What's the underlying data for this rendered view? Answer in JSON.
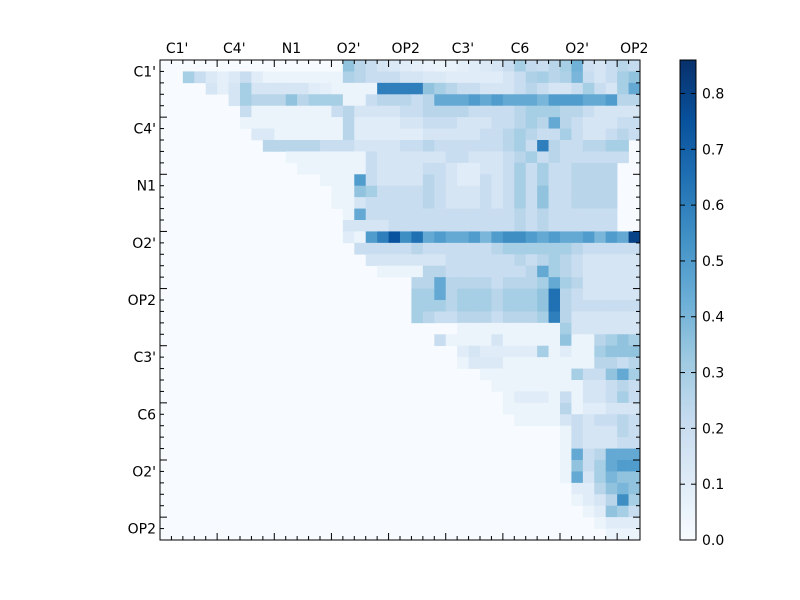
{
  "chart_data": {
    "type": "heatmap",
    "title": "",
    "xlabel": "",
    "ylabel": "",
    "grid": false,
    "x_tick_labels": [
      "C1'",
      "C4'",
      "N1",
      "O2'",
      "OP2",
      "C3'",
      "C6",
      "O2'",
      "OP2"
    ],
    "y_tick_labels": [
      "C1'",
      "C4'",
      "N1",
      "O2'",
      "OP2",
      "C3'",
      "C6",
      "O2'",
      "OP2"
    ],
    "x_axis_position": "top",
    "colormap": "Blues",
    "colorbar": {
      "min": 0.0,
      "max": 0.86,
      "ticks": [
        "0.0",
        "0.1",
        "0.2",
        "0.3",
        "0.4",
        "0.5",
        "0.6",
        "0.7",
        "0.8"
      ],
      "position": "right"
    },
    "matrix_size": 42,
    "default_value": 0.0,
    "upper_triangle_only": true,
    "row_values": [
      {
        "row": 0,
        "start": 0,
        "values": [
          0.0,
          0.0,
          0.0,
          0.0,
          0.0,
          0.0,
          0.0,
          0.0,
          0.0,
          0.0,
          0.0,
          0.0,
          0.0,
          0.0,
          0.0,
          0.0,
          0.35,
          0.25,
          0.2,
          0.15,
          0.12,
          0.1,
          0.08,
          0.06,
          0.05,
          0.06,
          0.08,
          0.1,
          0.12,
          0.15,
          0.2,
          0.3,
          0.22,
          0.2,
          0.25,
          0.3,
          0.42,
          0.18,
          0.15,
          0.2,
          0.25,
          0.22
        ]
      },
      {
        "row": 1,
        "start": 2,
        "values": [
          0.3,
          0.2,
          0.12,
          0.08,
          0.12,
          0.2,
          0.1,
          0.05,
          0.05,
          0.05,
          0.05,
          0.05,
          0.05,
          0.05,
          0.28,
          0.25,
          0.2,
          0.2,
          0.2,
          0.15,
          0.15,
          0.12,
          0.12,
          0.1,
          0.1,
          0.1,
          0.1,
          0.1,
          0.15,
          0.2,
          0.28,
          0.3,
          0.25,
          0.28,
          0.4,
          0.2,
          0.15,
          0.2,
          0.3,
          0.35
        ]
      },
      {
        "row": 2,
        "start": 4,
        "values": [
          0.15,
          0.08,
          0.15,
          0.3,
          0.15,
          0.15,
          0.15,
          0.15,
          0.15,
          0.1,
          0.08,
          0.05,
          0.05,
          0.05,
          0.05,
          0.6,
          0.6,
          0.6,
          0.6,
          0.35,
          0.3,
          0.25,
          0.2,
          0.2,
          0.15,
          0.15,
          0.15,
          0.2,
          0.25,
          0.2,
          0.15,
          0.15,
          0.2,
          0.3,
          0.2,
          0.15,
          0.3,
          0.45,
          0.55
        ]
      },
      {
        "row": 3,
        "start": 6,
        "values": [
          0.15,
          0.3,
          0.25,
          0.25,
          0.25,
          0.35,
          0.25,
          0.3,
          0.3,
          0.3,
          0.05,
          0.05,
          0.2,
          0.25,
          0.25,
          0.25,
          0.2,
          0.25,
          0.45,
          0.45,
          0.45,
          0.5,
          0.45,
          0.5,
          0.45,
          0.45,
          0.45,
          0.4,
          0.5,
          0.5,
          0.5,
          0.45,
          0.45,
          0.5,
          0.25,
          0.25,
          0.3,
          0.35
        ]
      },
      {
        "row": 4,
        "start": 7,
        "values": [
          0.2,
          0.05,
          0.05,
          0.05,
          0.05,
          0.05,
          0.05,
          0.05,
          0.2,
          0.25,
          0.15,
          0.15,
          0.15,
          0.15,
          0.2,
          0.2,
          0.25,
          0.25,
          0.25,
          0.25,
          0.2,
          0.2,
          0.2,
          0.2,
          0.25,
          0.3,
          0.3,
          0.3,
          0.25,
          0.25,
          0.2,
          0.15,
          0.15,
          0.15,
          0.15,
          0.15,
          0.2
        ]
      },
      {
        "row": 5,
        "start": 7,
        "values": [
          0.05,
          0.05,
          0.05,
          0.05,
          0.05,
          0.05,
          0.05,
          0.05,
          0.05,
          0.25,
          0.1,
          0.1,
          0.1,
          0.1,
          0.15,
          0.15,
          0.2,
          0.2,
          0.2,
          0.15,
          0.15,
          0.15,
          0.2,
          0.2,
          0.25,
          0.3,
          0.25,
          0.45,
          0.25,
          0.2,
          0.15,
          0.15,
          0.15,
          0.2,
          0.2
        ]
      },
      {
        "row": 6,
        "start": 8,
        "values": [
          0.12,
          0.12,
          0.05,
          0.05,
          0.05,
          0.05,
          0.05,
          0.05,
          0.25,
          0.1,
          0.1,
          0.1,
          0.1,
          0.1,
          0.1,
          0.15,
          0.15,
          0.15,
          0.15,
          0.15,
          0.2,
          0.2,
          0.25,
          0.3,
          0.25,
          0.2,
          0.2,
          0.3,
          0.2,
          0.15,
          0.15,
          0.2,
          0.25,
          0.2
        ]
      },
      {
        "row": 7,
        "start": 9,
        "values": [
          0.25,
          0.25,
          0.25,
          0.25,
          0.25,
          0.2,
          0.2,
          0.2,
          0.15,
          0.15,
          0.15,
          0.15,
          0.2,
          0.2,
          0.25,
          0.2,
          0.2,
          0.2,
          0.2,
          0.2,
          0.2,
          0.25,
          0.3,
          0.2,
          0.6,
          0.25,
          0.2,
          0.2,
          0.25,
          0.25,
          0.3,
          0.3
        ]
      },
      {
        "row": 8,
        "start": 11,
        "values": [
          0.05,
          0.05,
          0.05,
          0.05,
          0.05,
          0.05,
          0.05,
          0.2,
          0.15,
          0.15,
          0.15,
          0.15,
          0.15,
          0.15,
          0.2,
          0.2,
          0.15,
          0.15,
          0.15,
          0.2,
          0.25,
          0.3,
          0.2,
          0.25,
          0.2,
          0.2,
          0.2,
          0.2,
          0.2,
          0.2
        ]
      },
      {
        "row": 9,
        "start": 12,
        "values": [
          0.05,
          0.05,
          0.05,
          0.05,
          0.05,
          0.05,
          0.2,
          0.15,
          0.15,
          0.15,
          0.15,
          0.2,
          0.2,
          0.15,
          0.1,
          0.1,
          0.15,
          0.15,
          0.2,
          0.3,
          0.2,
          0.3,
          0.2,
          0.2,
          0.25,
          0.25,
          0.25,
          0.25
        ]
      },
      {
        "row": 10,
        "start": 14,
        "values": [
          0.05,
          0.05,
          0.05,
          0.5,
          0.2,
          0.15,
          0.15,
          0.15,
          0.15,
          0.25,
          0.2,
          0.15,
          0.1,
          0.1,
          0.2,
          0.15,
          0.2,
          0.3,
          0.2,
          0.3,
          0.2,
          0.2,
          0.25,
          0.25,
          0.25,
          0.25
        ]
      },
      {
        "row": 11,
        "start": 15,
        "values": [
          0.05,
          0.05,
          0.35,
          0.3,
          0.2,
          0.2,
          0.2,
          0.2,
          0.25,
          0.2,
          0.15,
          0.15,
          0.15,
          0.2,
          0.15,
          0.2,
          0.3,
          0.2,
          0.35,
          0.2,
          0.2,
          0.25,
          0.25,
          0.25,
          0.25
        ]
      },
      {
        "row": 12,
        "start": 15,
        "values": [
          0.05,
          0.05,
          0.15,
          0.2,
          0.2,
          0.2,
          0.2,
          0.2,
          0.25,
          0.2,
          0.15,
          0.15,
          0.15,
          0.2,
          0.15,
          0.2,
          0.3,
          0.2,
          0.35,
          0.2,
          0.2,
          0.25,
          0.25,
          0.25,
          0.25
        ]
      },
      {
        "row": 13,
        "start": 16,
        "values": [
          0.05,
          0.45,
          0.2,
          0.2,
          0.2,
          0.2,
          0.2,
          0.2,
          0.2,
          0.2,
          0.2,
          0.2,
          0.2,
          0.2,
          0.2,
          0.25,
          0.2,
          0.25,
          0.2,
          0.2,
          0.2,
          0.2,
          0.2,
          0.2
        ]
      },
      {
        "row": 14,
        "start": 16,
        "values": [
          0.15,
          0.15,
          0.15,
          0.15,
          0.2,
          0.2,
          0.2,
          0.2,
          0.2,
          0.2,
          0.2,
          0.2,
          0.2,
          0.2,
          0.2,
          0.25,
          0.2,
          0.25,
          0.2,
          0.2,
          0.2,
          0.2,
          0.2,
          0.2
        ]
      },
      {
        "row": 15,
        "start": 16,
        "values": [
          0.1,
          0.05,
          0.5,
          0.6,
          0.75,
          0.55,
          0.65,
          0.45,
          0.5,
          0.45,
          0.45,
          0.5,
          0.4,
          0.5,
          0.55,
          0.55,
          0.5,
          0.45,
          0.5,
          0.45,
          0.45,
          0.5,
          0.4,
          0.5,
          0.45,
          0.8,
          0.86,
          0.86,
          0.86
        ]
      },
      {
        "row": 16,
        "start": 17,
        "values": [
          0.2,
          0.2,
          0.2,
          0.2,
          0.2,
          0.25,
          0.2,
          0.2,
          0.2,
          0.2,
          0.2,
          0.2,
          0.25,
          0.3,
          0.3,
          0.3,
          0.3,
          0.3,
          0.3,
          0.25,
          0.2,
          0.2,
          0.2,
          0.2,
          0.2
        ]
      },
      {
        "row": 17,
        "start": 18,
        "values": [
          0.15,
          0.15,
          0.15,
          0.15,
          0.15,
          0.15,
          0.15,
          0.2,
          0.2,
          0.2,
          0.2,
          0.2,
          0.2,
          0.25,
          0.2,
          0.25,
          0.3,
          0.25,
          0.2,
          0.15,
          0.15,
          0.15,
          0.15,
          0.15
        ]
      },
      {
        "row": 18,
        "start": 19,
        "values": [
          0.05,
          0.05,
          0.05,
          0.05,
          0.25,
          0.25,
          0.2,
          0.2,
          0.2,
          0.2,
          0.2,
          0.2,
          0.2,
          0.25,
          0.45,
          0.3,
          0.25,
          0.2,
          0.15,
          0.15,
          0.15,
          0.15,
          0.15
        ]
      },
      {
        "row": 19,
        "start": 22,
        "values": [
          0.25,
          0.25,
          0.45,
          0.25,
          0.25,
          0.25,
          0.25,
          0.2,
          0.25,
          0.25,
          0.25,
          0.3,
          0.45,
          0.3,
          0.25,
          0.15,
          0.15,
          0.15,
          0.15,
          0.15
        ]
      },
      {
        "row": 20,
        "start": 22,
        "values": [
          0.3,
          0.3,
          0.45,
          0.25,
          0.3,
          0.3,
          0.3,
          0.25,
          0.3,
          0.3,
          0.3,
          0.35,
          0.65,
          0.25,
          0.2,
          0.15,
          0.15,
          0.15,
          0.15,
          0.15
        ]
      },
      {
        "row": 21,
        "start": 22,
        "values": [
          0.3,
          0.3,
          0.3,
          0.25,
          0.3,
          0.3,
          0.3,
          0.25,
          0.3,
          0.3,
          0.3,
          0.35,
          0.65,
          0.25,
          0.2,
          0.2,
          0.2,
          0.2,
          0.2,
          0.2
        ]
      },
      {
        "row": 22,
        "start": 22,
        "values": [
          0.3,
          0.25,
          0.2,
          0.2,
          0.25,
          0.25,
          0.25,
          0.2,
          0.25,
          0.25,
          0.25,
          0.3,
          0.6,
          0.25,
          0.15,
          0.15,
          0.15,
          0.15,
          0.15,
          0.15
        ]
      },
      {
        "row": 23,
        "start": 26,
        "values": [
          0.05,
          0.05,
          0.05,
          0.05,
          0.05,
          0.05,
          0.05,
          0.05,
          0.05,
          0.3,
          0.15,
          0.15,
          0.15,
          0.15,
          0.15,
          0.15
        ]
      },
      {
        "row": 24,
        "start": 24,
        "values": [
          0.2,
          0.05,
          0.05,
          0.05,
          0.05,
          0.15,
          0.05,
          0.05,
          0.05,
          0.05,
          0.05,
          0.35,
          0.05,
          0.05,
          0.25,
          0.3,
          0.35,
          0.3
        ]
      },
      {
        "row": 25,
        "start": 26,
        "values": [
          0.1,
          0.15,
          0.1,
          0.1,
          0.1,
          0.1,
          0.1,
          0.3,
          0.05,
          0.1,
          0.05,
          0.05,
          0.3,
          0.35,
          0.35,
          0.35
        ]
      },
      {
        "row": 26,
        "start": 26,
        "values": [
          0.05,
          0.12,
          0.12,
          0.12,
          0.05,
          0.05,
          0.05,
          0.05,
          0.05,
          0.05,
          0.05,
          0.05,
          0.25,
          0.25,
          0.2,
          0.25
        ]
      },
      {
        "row": 27,
        "start": 28,
        "values": [
          0.05,
          0.05,
          0.05,
          0.05,
          0.05,
          0.05,
          0.05,
          0.05,
          0.3,
          0.2,
          0.2,
          0.35,
          0.45,
          0.3
        ]
      },
      {
        "row": 28,
        "start": 29,
        "values": [
          0.05,
          0.05,
          0.05,
          0.05,
          0.05,
          0.05,
          0.05,
          0.05,
          0.15,
          0.15,
          0.2,
          0.25,
          0.2
        ]
      },
      {
        "row": 29,
        "start": 30,
        "values": [
          0.05,
          0.1,
          0.1,
          0.1,
          0.05,
          0.2,
          0.05,
          0.15,
          0.15,
          0.2,
          0.3,
          0.2
        ]
      },
      {
        "row": 30,
        "start": 30,
        "values": [
          0.05,
          0.05,
          0.05,
          0.05,
          0.05,
          0.25,
          0.05,
          0.1,
          0.1,
          0.15,
          0.15,
          0.15
        ]
      },
      {
        "row": 31,
        "start": 31,
        "values": [
          0.05,
          0.05,
          0.05,
          0.05,
          0.15,
          0.2,
          0.15,
          0.2,
          0.2,
          0.25,
          0.2
        ]
      },
      {
        "row": 32,
        "start": 35,
        "values": [
          0.05,
          0.2,
          0.15,
          0.15,
          0.15,
          0.25,
          0.2
        ]
      },
      {
        "row": 33,
        "start": 35,
        "values": [
          0.05,
          0.2,
          0.15,
          0.15,
          0.15,
          0.2,
          0.2
        ]
      },
      {
        "row": 34,
        "start": 35,
        "values": [
          0.05,
          0.45,
          0.2,
          0.25,
          0.45,
          0.45,
          0.45
        ]
      },
      {
        "row": 35,
        "start": 35,
        "values": [
          0.05,
          0.35,
          0.2,
          0.3,
          0.45,
          0.5,
          0.5
        ]
      },
      {
        "row": 36,
        "start": 35,
        "values": [
          0.05,
          0.45,
          0.15,
          0.3,
          0.4,
          0.35,
          0.35
        ]
      },
      {
        "row": 37,
        "start": 36,
        "values": [
          0.1,
          0.1,
          0.25,
          0.35,
          0.4,
          0.35
        ]
      },
      {
        "row": 38,
        "start": 36,
        "values": [
          0.05,
          0.1,
          0.15,
          0.25,
          0.55,
          0.3
        ]
      },
      {
        "row": 39,
        "start": 37,
        "values": [
          0.05,
          0.1,
          0.35,
          0.3,
          0.2
        ]
      },
      {
        "row": 40,
        "start": 38,
        "values": [
          0.05,
          0.1,
          0.1,
          0.1
        ]
      },
      {
        "row": 41,
        "start": 39,
        "values": [
          0.05,
          0.05,
          0.05
        ]
      }
    ]
  }
}
